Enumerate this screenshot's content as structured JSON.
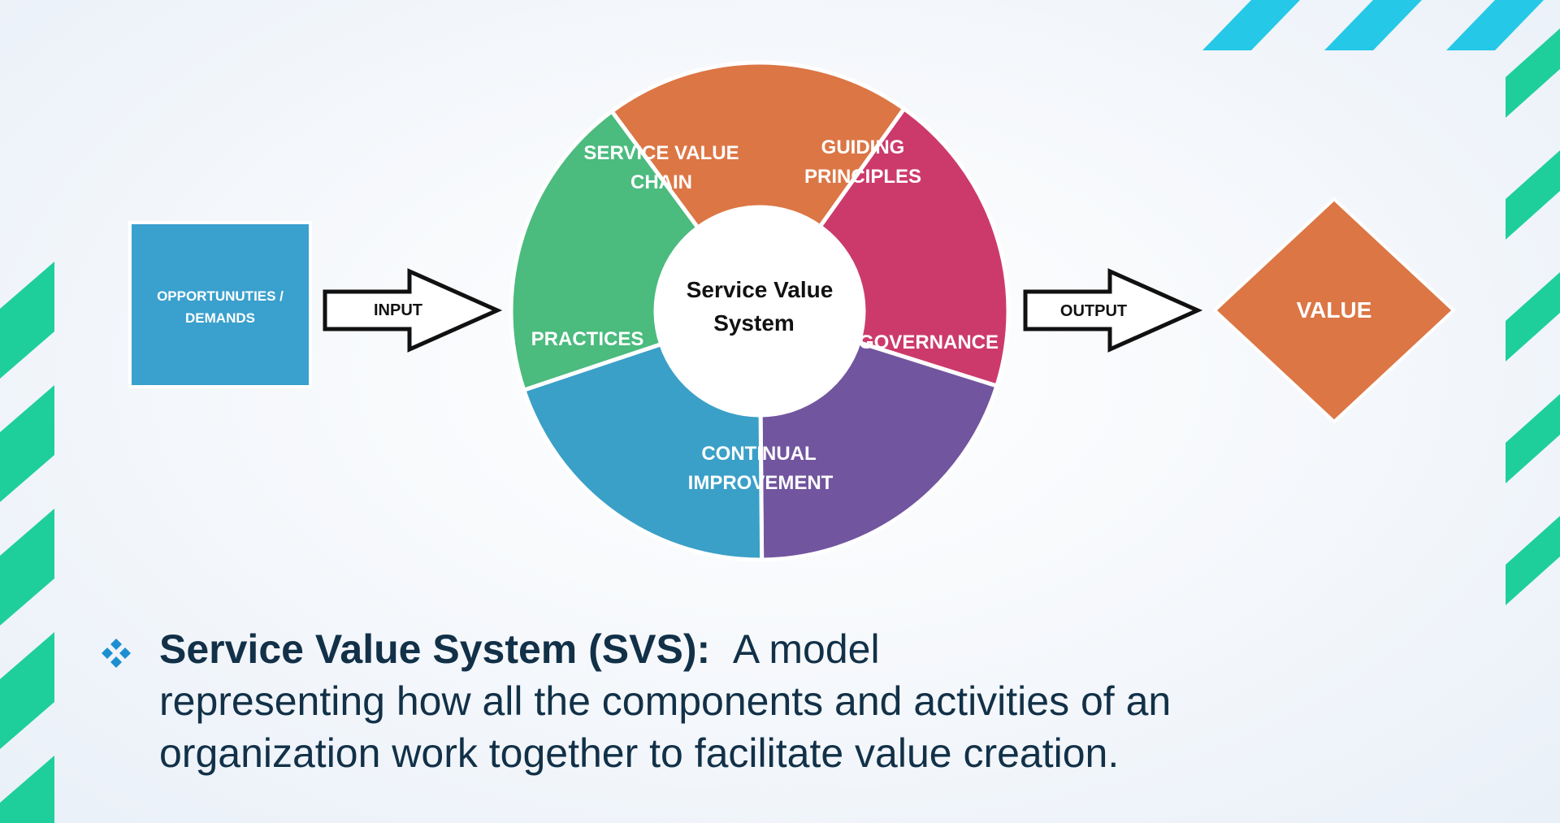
{
  "diagram": {
    "source_box": {
      "label_line1": "OPPORTUNUTIES /",
      "label_line2": "DEMANDS",
      "color": "#3aa0cd"
    },
    "input_arrow": {
      "label": "INPUT"
    },
    "center": {
      "line1": "Service Value",
      "line2": "System"
    },
    "segments": [
      {
        "id": "service-value-chain",
        "line1": "SERVICE VALUE",
        "line2": "CHAIN",
        "color": "#dc7645"
      },
      {
        "id": "guiding-principles",
        "line1": "GUIDING",
        "line2": "PRINCIPLES",
        "color": "#cc3a6b"
      },
      {
        "id": "governance",
        "line1": "GOVERNANCE",
        "line2": "",
        "color": "#72559f"
      },
      {
        "id": "continual-improvement",
        "line1": "CONTINUAL",
        "line2": "IMPROVEMENT",
        "color": "#3aa0c8"
      },
      {
        "id": "practices",
        "line1": "PRACTICES",
        "line2": "",
        "color": "#4bbb7e"
      }
    ],
    "output_arrow": {
      "label": "OUTPUT"
    },
    "value_diamond": {
      "label": "VALUE",
      "color": "#dc7645"
    }
  },
  "bullet": {
    "term": "Service Value System (SVS):",
    "line1_rest": "A model",
    "line2": "representing how all the components and activities of an",
    "line3": "organization work together to facilitate value creation.",
    "icon_color": "#1d8fd0"
  },
  "decor": {
    "stripe_cyan": "#25c8e6",
    "stripe_green": "#1fcf9b"
  }
}
